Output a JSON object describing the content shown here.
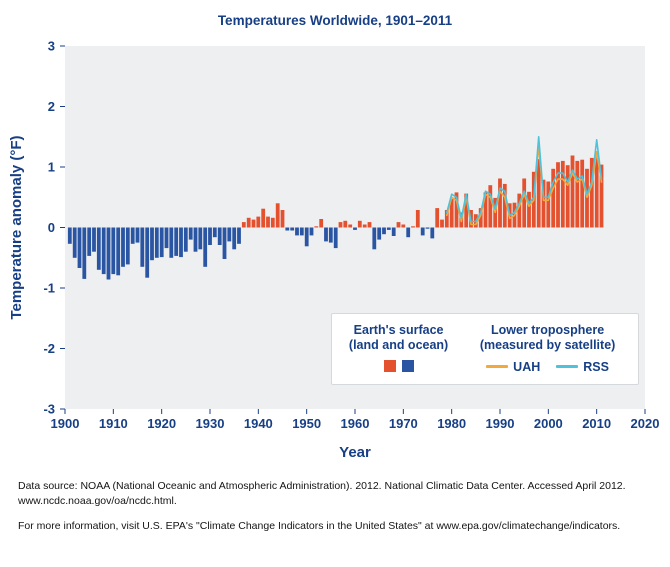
{
  "legend": {
    "surface_title_line1": "Earth's surface",
    "surface_title_line2": "(land and ocean)",
    "satellite_title_line1": "Lower troposphere",
    "satellite_title_line2": "(measured by satellite)",
    "uah_label": "UAH",
    "rss_label": "RSS"
  },
  "footer": {
    "data_source": "Data source: NOAA (National Oceanic and Atmospheric Administration). 2012. National Climatic Data Center. Accessed April 2012. www.ncdc.noaa.gov/oa/ncdc.html.",
    "more_info": "For more information, visit U.S. EPA's \"Climate Change Indicators in the United States\" at www.epa.gov/climatechange/indicators."
  },
  "chart_data": {
    "type": "bar",
    "title": "Temperatures Worldwide, 1901–2011",
    "xlabel": "Year",
    "ylabel": "Temperature anomaly (°F)",
    "xlim": [
      1900,
      2020
    ],
    "ylim": [
      -3,
      3
    ],
    "x_ticks": [
      1900,
      1910,
      1920,
      1930,
      1940,
      1950,
      1960,
      1970,
      1980,
      1990,
      2000,
      2010,
      2020
    ],
    "y_ticks": [
      3,
      2,
      1,
      0,
      -1,
      -2,
      -3
    ],
    "grid": false,
    "legend_position": "inside-bottom-right",
    "colors": {
      "text": "#173f85",
      "plot_bg": "#edeff1",
      "bar_positive": "#e4512e",
      "bar_negative": "#2a55a2",
      "uah": "#f2a93b",
      "rss": "#4fc2d9"
    },
    "bars": {
      "name": "Earth's surface (land and ocean)",
      "start_year": 1901,
      "values": [
        -0.27,
        -0.5,
        -0.67,
        -0.85,
        -0.47,
        -0.4,
        -0.7,
        -0.77,
        -0.86,
        -0.77,
        -0.79,
        -0.65,
        -0.61,
        -0.27,
        -0.25,
        -0.65,
        -0.83,
        -0.54,
        -0.5,
        -0.49,
        -0.34,
        -0.5,
        -0.47,
        -0.49,
        -0.4,
        -0.2,
        -0.4,
        -0.36,
        -0.65,
        -0.29,
        -0.16,
        -0.29,
        -0.52,
        -0.23,
        -0.36,
        -0.27,
        0.09,
        0.16,
        0.13,
        0.18,
        0.31,
        0.18,
        0.16,
        0.4,
        0.29,
        -0.05,
        -0.05,
        -0.13,
        -0.13,
        -0.31,
        -0.13,
        0.02,
        0.14,
        -0.23,
        -0.25,
        -0.34,
        0.09,
        0.11,
        0.05,
        -0.04,
        0.11,
        0.05,
        0.09,
        -0.36,
        -0.2,
        -0.11,
        -0.04,
        -0.14,
        0.09,
        0.05,
        -0.16,
        0.02,
        0.29,
        -0.13,
        -0.02,
        -0.18,
        0.32,
        0.13,
        0.29,
        0.47,
        0.58,
        0.25,
        0.56,
        0.29,
        0.22,
        0.32,
        0.58,
        0.7,
        0.49,
        0.81,
        0.72,
        0.4,
        0.41,
        0.56,
        0.81,
        0.59,
        0.92,
        1.13,
        0.79,
        0.76,
        0.97,
        1.08,
        1.1,
        1.03,
        1.19,
        1.1,
        1.12,
        0.97,
        1.15,
        1.26,
        1.04
      ]
    },
    "series": [
      {
        "name": "UAH",
        "color_key": "uah",
        "start_year": 1979,
        "values": [
          0.2,
          0.5,
          0.45,
          0.1,
          0.5,
          0.05,
          0.05,
          0.2,
          0.55,
          0.5,
          0.25,
          0.6,
          0.5,
          0.15,
          0.2,
          0.35,
          0.55,
          0.35,
          0.45,
          1.35,
          0.45,
          0.45,
          0.65,
          0.8,
          0.8,
          0.7,
          0.9,
          0.75,
          0.8,
          0.5,
          0.7,
          1.25,
          0.75
        ]
      },
      {
        "name": "RSS",
        "color_key": "rss",
        "start_year": 1979,
        "values": [
          0.25,
          0.55,
          0.5,
          0.15,
          0.55,
          0.1,
          0.1,
          0.25,
          0.6,
          0.55,
          0.3,
          0.65,
          0.6,
          0.2,
          0.25,
          0.4,
          0.6,
          0.4,
          0.5,
          1.5,
          0.5,
          0.5,
          0.75,
          0.9,
          0.9,
          0.75,
          0.95,
          0.8,
          0.85,
          0.55,
          0.75,
          1.45,
          0.8
        ]
      }
    ]
  }
}
